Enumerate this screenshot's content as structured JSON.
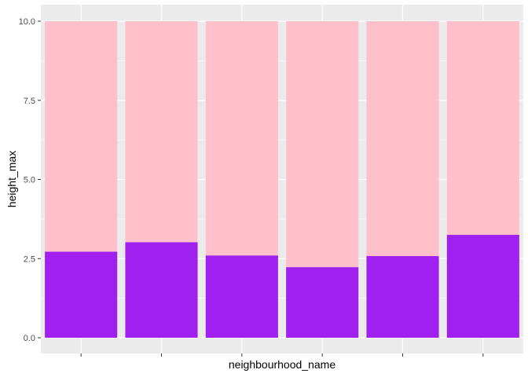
{
  "chart_data": {
    "type": "bar",
    "stacked": true,
    "categories": [
      "",
      "",
      "",
      "",
      "",
      ""
    ],
    "series": [
      {
        "values": [
          2.72,
          3.02,
          2.6,
          2.23,
          2.58,
          3.25
        ],
        "color": "#A020F0"
      },
      {
        "values": [
          7.28,
          6.98,
          7.4,
          7.77,
          7.42,
          6.75
        ],
        "color": "#FFC0CB"
      }
    ],
    "totals": [
      10,
      10,
      10,
      10,
      10,
      10
    ],
    "xlabel": "neighbourhood_name",
    "ylabel": "height_max",
    "ylim": [
      0,
      10
    ],
    "yticks": [
      0,
      2.5,
      5,
      7.5,
      10
    ],
    "ytick_labels": [
      "0.0",
      "2.5",
      "5.0",
      "7.5",
      "10.0"
    ],
    "grid": true,
    "panel_background": "#EBEBEB",
    "grid_color": "#FFFFFF",
    "legend": "none"
  }
}
